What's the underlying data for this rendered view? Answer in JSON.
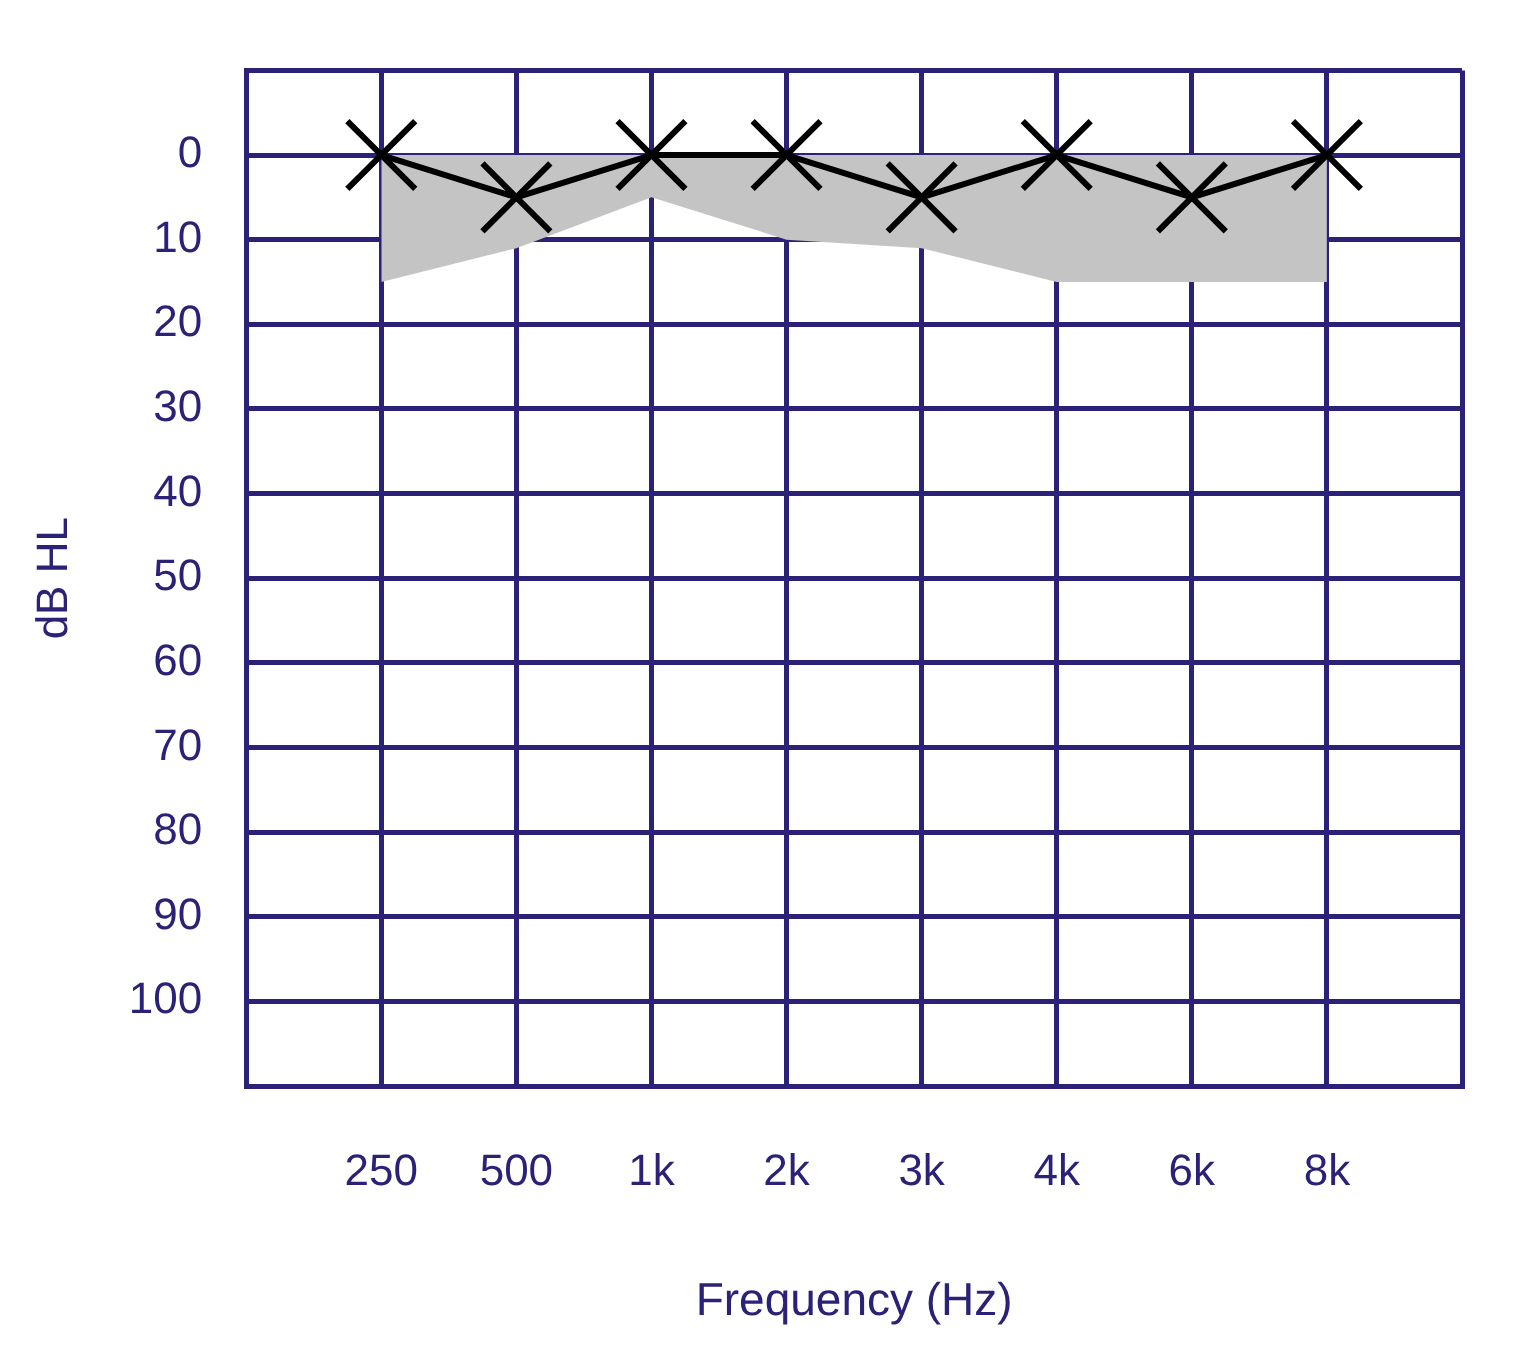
{
  "chart_data": {
    "type": "line",
    "xlabel": "Frequency (Hz)",
    "ylabel": "dB HL",
    "categories": [
      null,
      "250",
      "500",
      "1k",
      "2k",
      "3k",
      "4k",
      "6k",
      "8k",
      null
    ],
    "series": [
      {
        "color": "#000000",
        "values": [
          null,
          0,
          5,
          0,
          0,
          5,
          0,
          5,
          0,
          null
        ],
        "upper": [
          null,
          0,
          0,
          0,
          0,
          0,
          0,
          0,
          0,
          null
        ],
        "lower": [
          null,
          15,
          11,
          5,
          10,
          11,
          15,
          15,
          15,
          null
        ]
      }
    ],
    "ylim": [
      110,
      -10
    ],
    "yticks": [
      {
        "value": -10,
        "label": null
      },
      0,
      10,
      20,
      30,
      40,
      50,
      60,
      70,
      80,
      90,
      100,
      {
        "value": 110,
        "label": null
      }
    ],
    "grid": true,
    "legend": false,
    "marker": "cross",
    "line_style": "solid"
  }
}
